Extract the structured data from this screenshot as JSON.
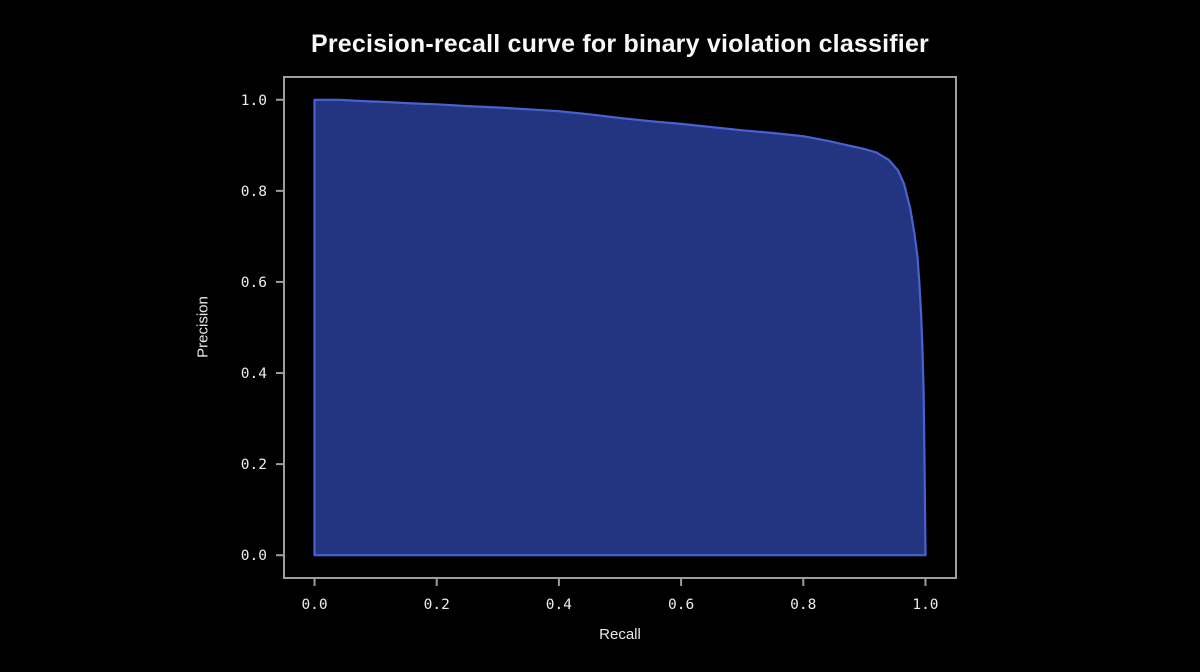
{
  "page": {
    "background_color": "#000000"
  },
  "chart": {
    "title": "Precision-recall curve for binary violation classifier",
    "xlabel": "Recall",
    "ylabel": "Precision"
  },
  "chart_data": {
    "type": "area",
    "title": "Precision-recall curve for binary violation classifier",
    "xlabel": "Recall",
    "ylabel": "Precision",
    "xlim": [
      -0.05,
      1.05
    ],
    "ylim": [
      -0.05,
      1.05
    ],
    "x_ticks": [
      "0.0",
      "0.2",
      "0.4",
      "0.6",
      "0.8",
      "1.0"
    ],
    "y_ticks": [
      "0.0",
      "0.2",
      "0.4",
      "0.6",
      "0.8",
      "1.0"
    ],
    "grid": false,
    "legend": "none",
    "colors": {
      "fill": "#233480",
      "line": "#4a61d4",
      "frame": "#9e9e9e",
      "tick_text": "#ededed",
      "title_text": "#f8f8f8"
    },
    "series": [
      {
        "name": "precision-recall",
        "points": [
          [
            0.0,
            1.0
          ],
          [
            0.04,
            1.0
          ],
          [
            0.08,
            0.997
          ],
          [
            0.12,
            0.995
          ],
          [
            0.16,
            0.992
          ],
          [
            0.2,
            0.99
          ],
          [
            0.25,
            0.986
          ],
          [
            0.3,
            0.983
          ],
          [
            0.35,
            0.979
          ],
          [
            0.4,
            0.975
          ],
          [
            0.45,
            0.968
          ],
          [
            0.5,
            0.96
          ],
          [
            0.55,
            0.953
          ],
          [
            0.6,
            0.947
          ],
          [
            0.65,
            0.94
          ],
          [
            0.7,
            0.933
          ],
          [
            0.75,
            0.927
          ],
          [
            0.8,
            0.92
          ],
          [
            0.84,
            0.91
          ],
          [
            0.87,
            0.901
          ],
          [
            0.9,
            0.892
          ],
          [
            0.92,
            0.884
          ],
          [
            0.94,
            0.868
          ],
          [
            0.955,
            0.845
          ],
          [
            0.965,
            0.815
          ],
          [
            0.975,
            0.762
          ],
          [
            0.982,
            0.705
          ],
          [
            0.987,
            0.655
          ],
          [
            0.99,
            0.6
          ],
          [
            0.993,
            0.525
          ],
          [
            0.995,
            0.455
          ],
          [
            0.997,
            0.36
          ],
          [
            0.998,
            0.26
          ],
          [
            0.999,
            0.15
          ],
          [
            1.0,
            0.0
          ]
        ]
      }
    ]
  }
}
